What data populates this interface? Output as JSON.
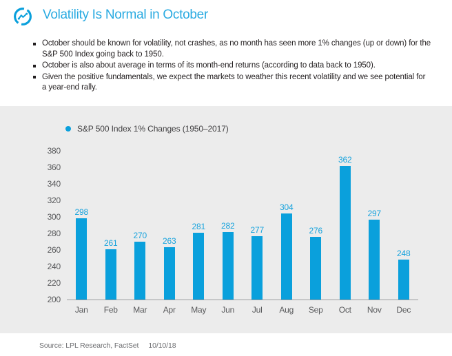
{
  "header": {
    "title": "Volatility Is Normal in October",
    "icon": "trend-circle-icon"
  },
  "bullets": [
    "October should be known for volatility, not crashes, as no month has seen more 1% changes (up or down) for the S&P 500 Index going back to 1950.",
    "October is also about average in terms of its month-end returns (according to data back to 1950).",
    "Given the positive fundamentals, we expect the markets to weather this recent volatility and we see potential for a year-end rally."
  ],
  "chart_data": {
    "type": "bar",
    "legend": "S&P 500 Index 1% Changes (1950–2017)",
    "legend_position": "top-left",
    "categories": [
      "Jan",
      "Feb",
      "Mar",
      "Apr",
      "May",
      "Jun",
      "Jul",
      "Aug",
      "Sep",
      "Oct",
      "Nov",
      "Dec"
    ],
    "values": [
      298,
      261,
      270,
      263,
      281,
      282,
      277,
      304,
      276,
      362,
      297,
      248
    ],
    "ylim": [
      200,
      380
    ],
    "yticks": [
      380,
      360,
      340,
      320,
      300,
      280,
      260,
      240,
      220,
      200
    ],
    "grid": false,
    "bar_color": "#0aa0dc",
    "panel_bg": "#ececec"
  },
  "footer": {
    "source": "Source: LPL Research, FactSet",
    "date": "10/10/18"
  },
  "colors": {
    "accent_blue": "#0aa0dc",
    "title_blue": "#29aae1",
    "value_label_blue": "#18a3dd",
    "panel_gray": "#ececec",
    "axis_text_gray": "#58595b",
    "body_text": "#231f20",
    "source_text": "#6d6e71"
  }
}
